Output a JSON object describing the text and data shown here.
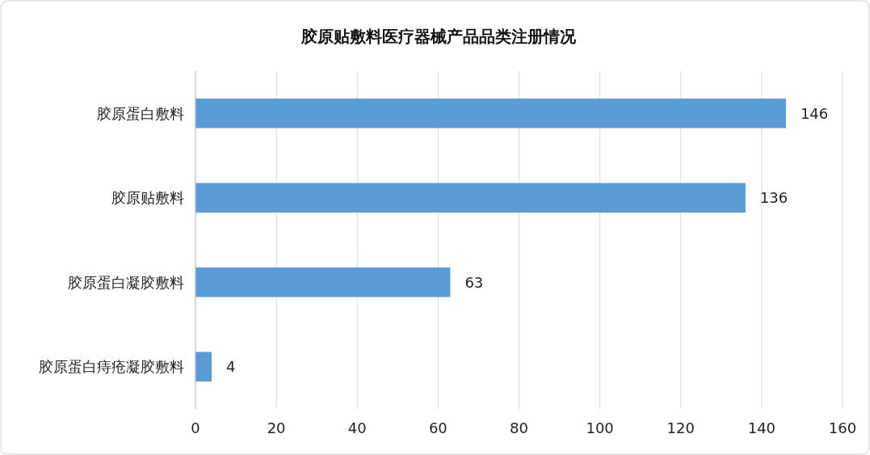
{
  "chart_data": {
    "type": "bar",
    "orientation": "horizontal",
    "title": "胶原贴敷料医疗器械产品品类注册情况",
    "categories": [
      "胶原蛋白敷料",
      "胶原贴敷料",
      "胶原蛋白凝胶敷料",
      "胶原蛋白痔疮凝胶敷料"
    ],
    "values": [
      146,
      136,
      63,
      4
    ],
    "color": "#5b9bd5",
    "xlim": [
      0,
      160
    ],
    "xticks": [
      0,
      20,
      40,
      60,
      80,
      100,
      120,
      140,
      160
    ],
    "grid": "x",
    "data_labels": true
  }
}
